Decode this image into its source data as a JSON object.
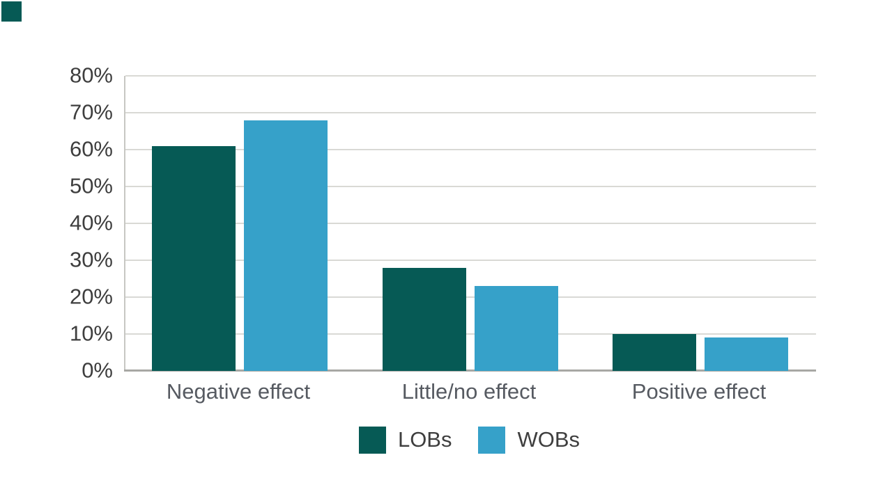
{
  "chart_data": {
    "type": "bar",
    "title": "",
    "categories": [
      "Negative effect",
      "Little/no effect",
      "Positive effect"
    ],
    "series": [
      {
        "name": "LOBs",
        "color": "#065a55",
        "values": [
          61,
          28,
          10
        ]
      },
      {
        "name": "WOBs",
        "color": "#36a1c9",
        "values": [
          68,
          23,
          9
        ]
      }
    ],
    "xlabel": "",
    "ylabel": "",
    "ylim": [
      0,
      80
    ],
    "ytick_step": 10,
    "ytick_labels": [
      "0%",
      "10%",
      "20%",
      "30%",
      "40%",
      "50%",
      "60%",
      "70%",
      "80%"
    ],
    "grid": "horizontal",
    "legend_position": "bottom-center"
  },
  "colors": {
    "background": "#ffffff",
    "corner_accent": "#065a55",
    "gridline": "#d9d9d5",
    "baseline": "#a8a8a4",
    "axis_line": "#c7c7c3",
    "tick_text": "#3e3e3e",
    "category_text": "#565a61",
    "legend_text": "#3e3e3e"
  }
}
